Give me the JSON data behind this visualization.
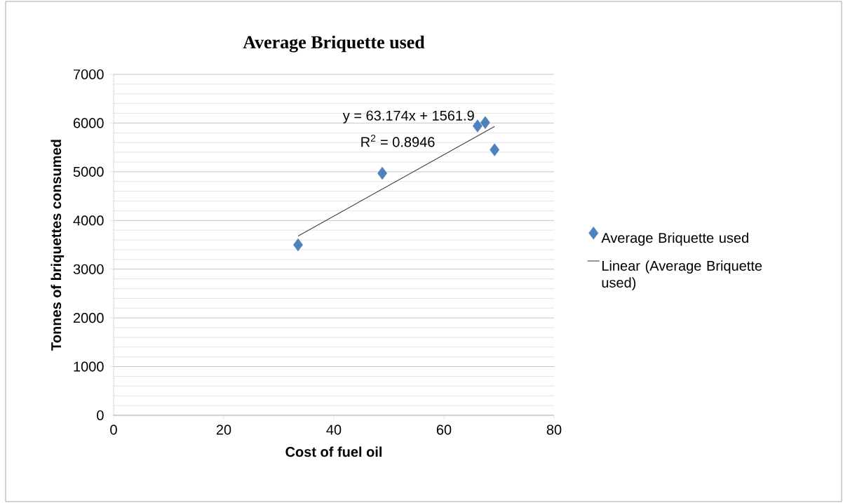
{
  "chart_data": {
    "type": "scatter",
    "title": "Average Briquette used",
    "xlabel": "Cost of fuel oil",
    "ylabel": "Tonnes of briquettes consumed",
    "xlim": [
      0,
      80
    ],
    "xticks": [
      0,
      20,
      40,
      60,
      80
    ],
    "ylim": [
      0,
      7000
    ],
    "yticks": [
      0,
      1000,
      2000,
      3000,
      4000,
      5000,
      6000,
      7000
    ],
    "grid": "y",
    "legend": "right",
    "series": [
      {
        "name": "Average Briquette used",
        "marker": "diamond",
        "color": "#4f81bd",
        "x": [
          33.5,
          48.8,
          66.1,
          67.5,
          69.2
        ],
        "values": [
          3500,
          4970,
          5940,
          6010,
          5450
        ]
      },
      {
        "name": "Linear (Average Briquette used)",
        "type": "line",
        "marker": "none",
        "color": "#404040",
        "x": [
          33.5,
          69.2
        ],
        "values": [
          3680,
          5930
        ]
      }
    ],
    "annotations": [
      "y = 63.174x + 1561.9",
      "R$^{2}$ = 0.8946"
    ]
  }
}
